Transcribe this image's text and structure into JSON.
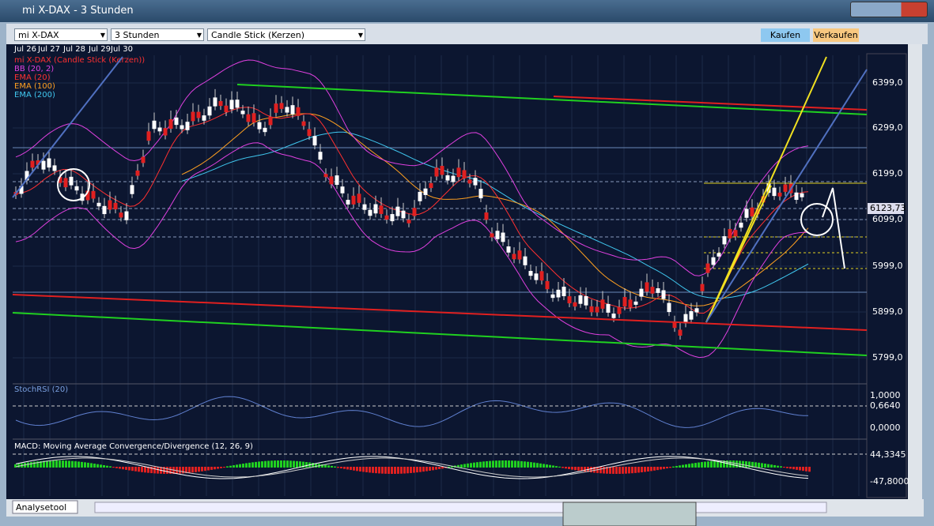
{
  "window": {
    "title": "mi X-DAX - 3 Stunden"
  },
  "toolbar": {
    "instrument": "mi X-DAX",
    "interval": "3 Stunden",
    "chart_type": "Candle Stick (Kerzen)",
    "buy": "Kaufen",
    "sell": "Verkaufen"
  },
  "chart": {
    "dates": [
      "Jul 26",
      "Jul 27",
      "Jul 28",
      "Jul 29",
      "Jul 30"
    ],
    "legend": [
      "mi X-DAX (Candle Stick (Kerzen))",
      "BB (20, 2)",
      "EMA (20)",
      "EMA (100)",
      "EMA (200)"
    ],
    "price_axis": [
      "6399,0",
      "6299,0",
      "6199,0",
      "6099,0",
      "5999,0",
      "5899,0",
      "5799,0"
    ],
    "last_price": "6123,73"
  },
  "stoch_rsi": {
    "title": "StochRSI (20)",
    "axis": [
      "1,0000",
      "0,6640",
      "0,0000"
    ]
  },
  "macd": {
    "title": "MACD: Moving Average Convergence/Divergence (12, 26, 9)",
    "axis": [
      "44,3345",
      "-47,8000"
    ]
  },
  "footer": {
    "tool": "Analysetool"
  }
}
